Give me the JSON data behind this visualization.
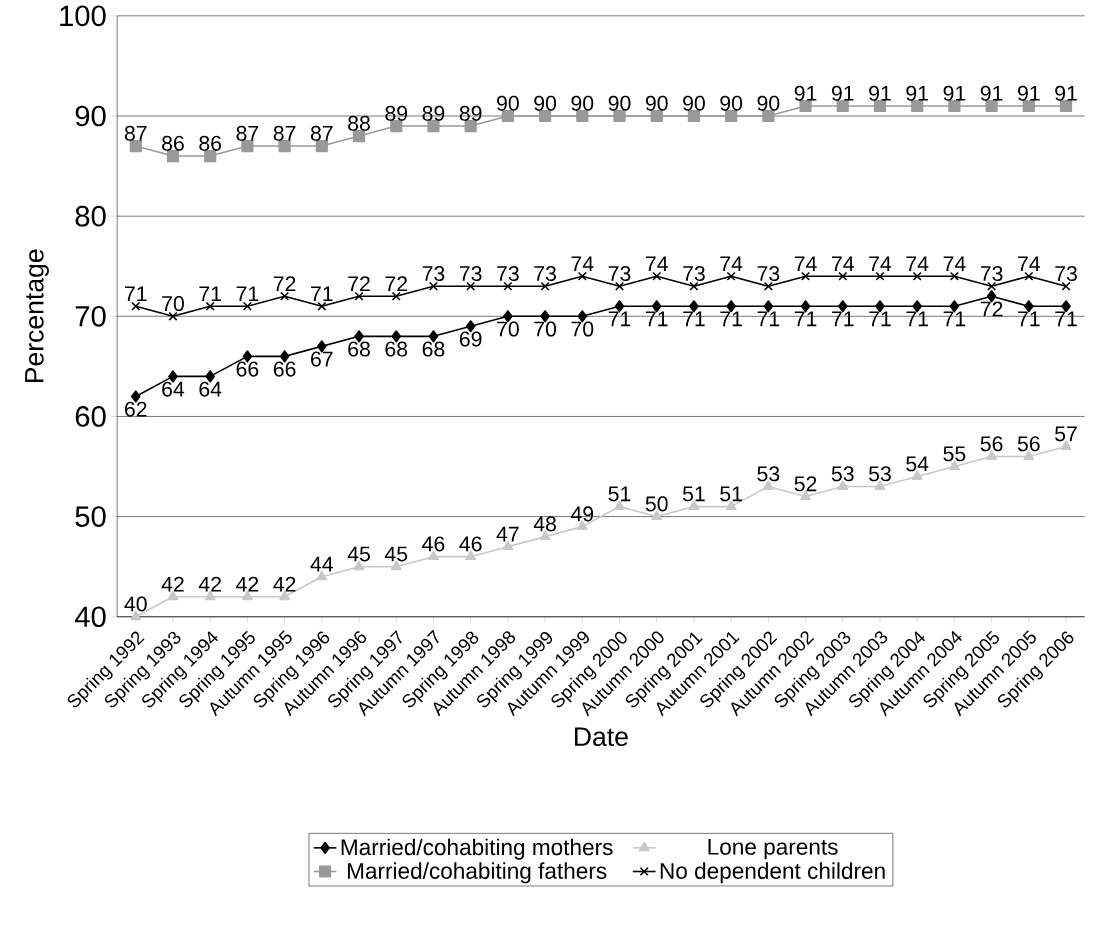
{
  "chart_data": {
    "type": "line",
    "xlabel": "Date",
    "ylabel": "Percentage",
    "categories": [
      "Spring 1992",
      "Spring 1993",
      "Spring 1994",
      "Spring 1995",
      "Autumn 1995",
      "Spring 1996",
      "Autumn 1996",
      "Spring 1997",
      "Autumn 1997",
      "Spring 1998",
      "Autumn 1998",
      "Spring 1999",
      "Autumn 1999",
      "Spring 2000",
      "Autumn 2000",
      "Spring 2001",
      "Autumn 2001",
      "Spring 2002",
      "Autumn 2002",
      "Spring 2003",
      "Autumn 2003",
      "Spring 2004",
      "Autumn 2004",
      "Spring 2005",
      "Autumn 2005",
      "Spring 2006"
    ],
    "series": [
      {
        "name": "Married/cohabiting mothers",
        "color": "#000000",
        "marker": "diamond",
        "values": [
          62,
          64,
          64,
          66,
          66,
          67,
          68,
          68,
          68,
          69,
          70,
          70,
          70,
          71,
          71,
          71,
          71,
          71,
          71,
          71,
          71,
          71,
          71,
          72,
          71,
          71
        ]
      },
      {
        "name": "Lone parents",
        "color": "#c8c8c8",
        "marker": "triangle",
        "values": [
          40,
          42,
          42,
          42,
          42,
          44,
          45,
          45,
          46,
          46,
          47,
          48,
          49,
          51,
          50,
          51,
          51,
          53,
          52,
          53,
          53,
          54,
          55,
          56,
          56,
          57
        ]
      },
      {
        "name": "Married/cohabiting fathers",
        "color": "#999999",
        "marker": "square",
        "values": [
          87,
          86,
          86,
          87,
          87,
          87,
          88,
          89,
          89,
          89,
          90,
          90,
          90,
          90,
          90,
          90,
          90,
          90,
          91,
          91,
          91,
          91,
          91,
          91,
          91,
          91
        ]
      },
      {
        "name": "No dependent children",
        "color": "#000000",
        "marker": "cross",
        "values": [
          71,
          70,
          71,
          71,
          72,
          71,
          72,
          72,
          73,
          73,
          73,
          73,
          74,
          73,
          74,
          73,
          74,
          73,
          74,
          74,
          74,
          74,
          74,
          73,
          74,
          73
        ]
      }
    ],
    "ylim": [
      40,
      100
    ],
    "yticks": [
      40,
      50,
      60,
      70,
      80,
      90,
      100
    ],
    "grid": "y",
    "legend": "bottom",
    "data_labels": true,
    "line_style": "solid"
  }
}
